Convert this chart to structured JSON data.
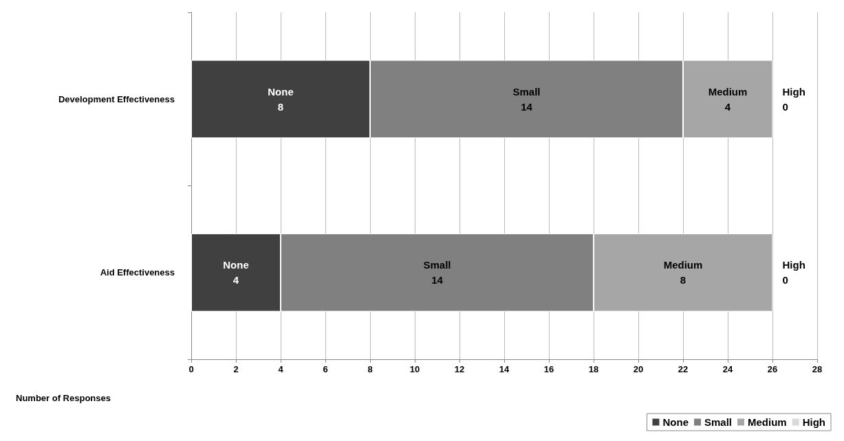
{
  "chart_data": {
    "type": "bar",
    "orientation": "horizontal",
    "stacked": true,
    "categories": [
      "Development Effectiveness",
      "Aid Effectiveness"
    ],
    "series": [
      {
        "name": "None",
        "color": "#404040",
        "values": [
          8,
          4
        ]
      },
      {
        "name": "Small",
        "color": "#808080",
        "values": [
          14,
          14
        ]
      },
      {
        "name": "Medium",
        "color": "#a6a6a6",
        "values": [
          4,
          8
        ]
      },
      {
        "name": "High",
        "color": "#d9d9d9",
        "values": [
          0,
          0
        ]
      }
    ],
    "xlabel": "Number of Responses",
    "xlim": [
      0,
      28
    ],
    "xticks": [
      0,
      2,
      4,
      6,
      8,
      10,
      12,
      14,
      16,
      18,
      20,
      22,
      24,
      26,
      28
    ],
    "grid": "x",
    "legend": "bottom right",
    "data_labels": true
  }
}
